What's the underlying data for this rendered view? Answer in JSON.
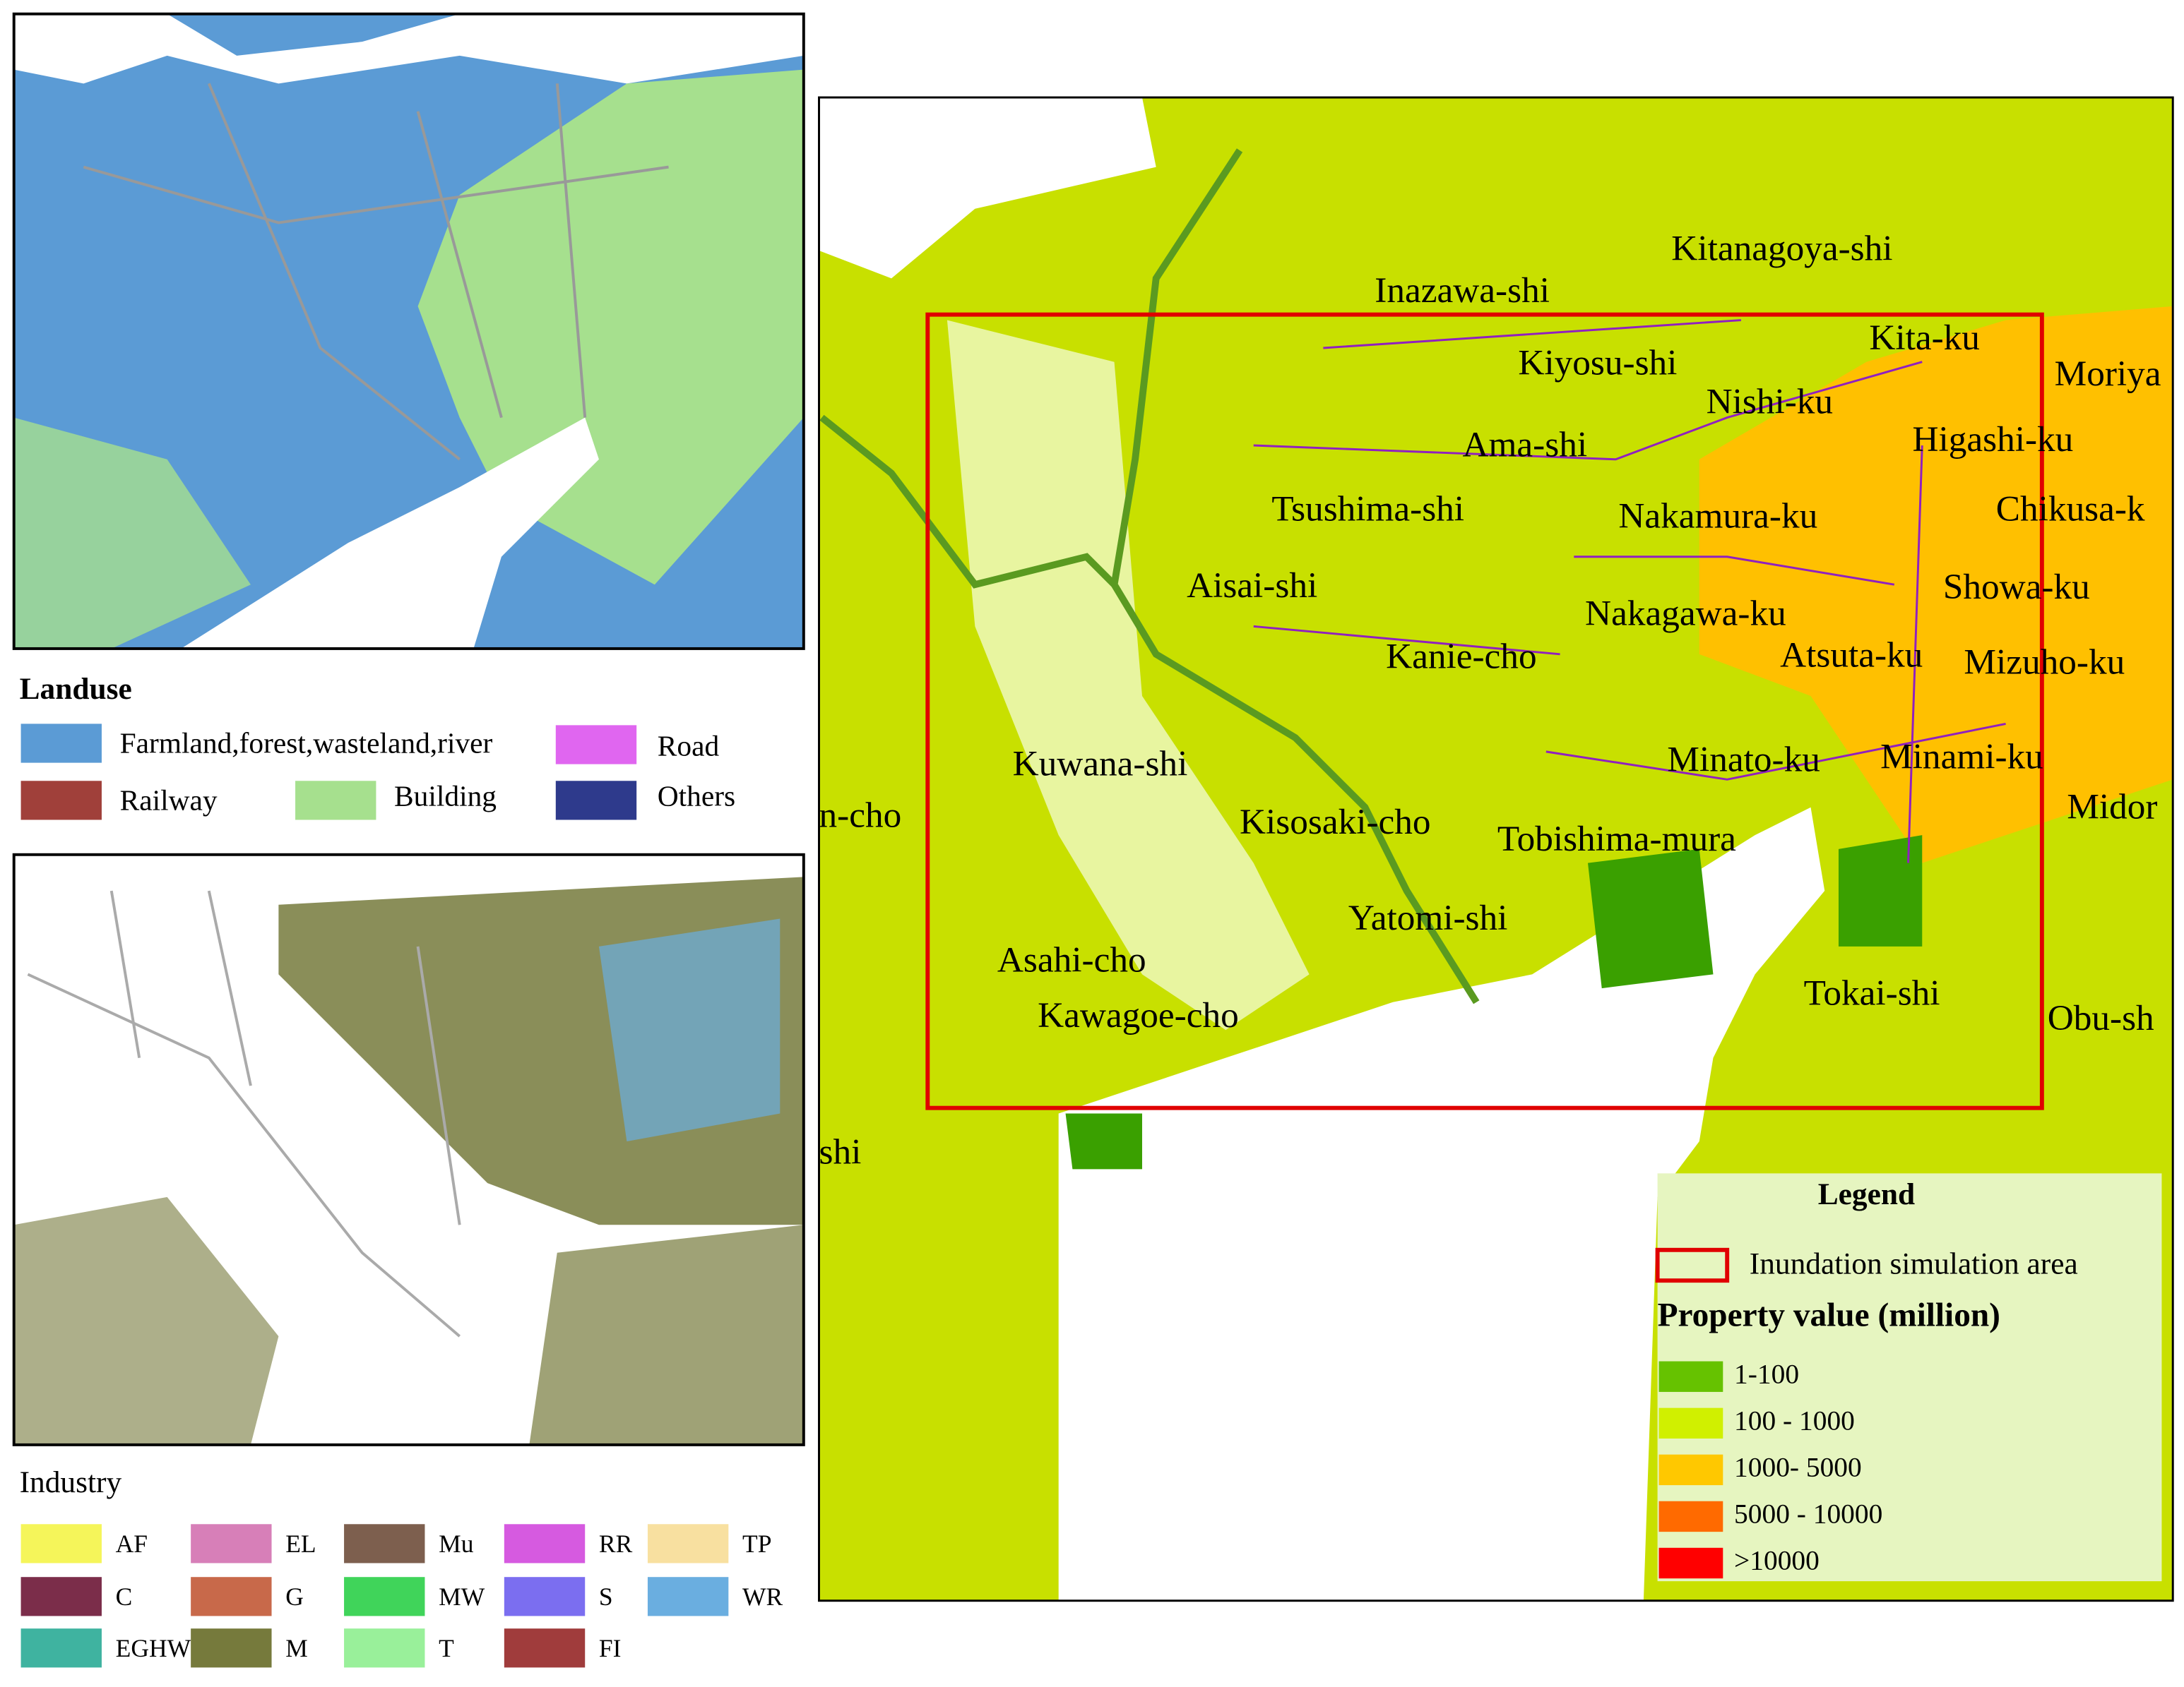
{
  "landuse": {
    "title": "Landuse",
    "items": [
      {
        "label": "Farmland,forest,wasteland,river",
        "color": "#5b9bd5"
      },
      {
        "label": "Road",
        "color": "#e066f0"
      },
      {
        "label": "Railway",
        "color": "#a0403a"
      },
      {
        "label": "Building",
        "color": "#a6e08e"
      },
      {
        "label": "Others",
        "color": "#2e3a8c"
      }
    ]
  },
  "industry": {
    "title": "Industry",
    "items": [
      {
        "label": "AF",
        "color": "#f5f55a"
      },
      {
        "label": "C",
        "color": "#7b2d4a"
      },
      {
        "label": "EGHW",
        "color": "#3fb3a0"
      },
      {
        "label": "EL",
        "color": "#d77fb8"
      },
      {
        "label": "G",
        "color": "#c8694a"
      },
      {
        "label": "M",
        "color": "#767a3c"
      },
      {
        "label": "Mu",
        "color": "#7d5f4e"
      },
      {
        "label": "MW",
        "color": "#40d45a"
      },
      {
        "label": "T",
        "color": "#99f09a"
      },
      {
        "label": "RR",
        "color": "#d65ae0"
      },
      {
        "label": "S",
        "color": "#7b6ef0"
      },
      {
        "label": "FI",
        "color": "#a03c3c"
      },
      {
        "label": "TP",
        "color": "#f8e0a0"
      },
      {
        "label": "WR",
        "color": "#6aaee0"
      }
    ]
  },
  "places": [
    "Kitanagoya-shi",
    "Inazawa-shi",
    "Kiyosu-shi",
    "Kita-ku",
    "Moriya",
    "Nishi-ku",
    "Ama-shi",
    "Higashi-ku",
    "Tsushima-shi",
    "Nakamura-ku",
    "Chikusa-k",
    "Aisai-shi",
    "Showa-ku",
    "Nakagawa-ku",
    "Atsuta-ku",
    "Mizuho-ku",
    "Kanie-cho",
    "Kuwana-shi",
    "Minato-ku",
    "Minami-ku",
    "Midor",
    "n-cho",
    "Kisosaki-cho",
    "Tobishima-mura",
    "Yatomi-shi",
    "Asahi-cho",
    "Tokai-shi",
    "Kawagoe-cho",
    "Obu-sh",
    "shi"
  ],
  "legend": {
    "title": "Legend",
    "area": {
      "label": "Inundation simulation area",
      "color": "#e00000"
    },
    "subtitle": "Property value (million)",
    "classes": [
      {
        "label": "1-100",
        "color": "#66c200"
      },
      {
        "label": "100 - 1000",
        "color": "#d0f000"
      },
      {
        "label": "1000- 5000",
        "color": "#ffc800"
      },
      {
        "label": "5000 - 10000",
        "color": "#ff6a00"
      },
      {
        "label": ">10000",
        "color": "#ff0000"
      }
    ]
  }
}
